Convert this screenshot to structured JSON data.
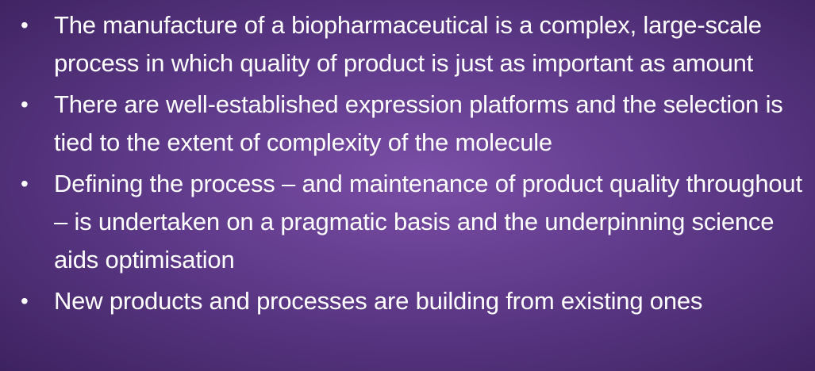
{
  "slide": {
    "bullets": [
      {
        "text": "The manufacture of a biopharmaceutical is a complex, large-scale process in which quality of product is just as important as amount"
      },
      {
        "text": "There are well-established expression platforms and the selection is tied to the extent of complexity of the molecule"
      },
      {
        "text": "Defining the process – and maintenance of product quality throughout – is undertaken on a pragmatic basis and the underpinning science aids optimisation"
      },
      {
        "text": "New products and processes are building from existing ones"
      }
    ],
    "bullet_glyph": "•",
    "colors": {
      "background_center": "#7a4ea6",
      "background_edge": "#3d2260",
      "text": "#ffffff"
    }
  }
}
